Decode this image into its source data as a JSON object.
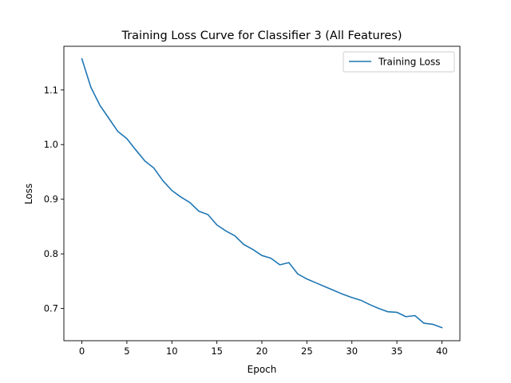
{
  "chart_data": {
    "type": "line",
    "title": "Training Loss Curve for Classifier 3 (All Features)",
    "xlabel": "Epoch",
    "ylabel": "Loss",
    "xlim": [
      -2,
      42
    ],
    "ylim": [
      0.641,
      1.18
    ],
    "xticks": [
      0,
      5,
      10,
      15,
      20,
      25,
      30,
      35,
      40
    ],
    "yticks": [
      0.7,
      0.8,
      0.9,
      1.0,
      1.1
    ],
    "ytick_labels": [
      "0.7",
      "0.8",
      "0.9",
      "1.0",
      "1.1"
    ],
    "grid": false,
    "legend_position": "top-right",
    "series": [
      {
        "name": "Training Loss",
        "color": "#1f77b4",
        "x": [
          0,
          1,
          2,
          3,
          4,
          5,
          6,
          7,
          8,
          9,
          10,
          11,
          12,
          13,
          14,
          15,
          16,
          17,
          18,
          19,
          20,
          21,
          22,
          23,
          24,
          25,
          26,
          27,
          28,
          29,
          30,
          31,
          32,
          33,
          34,
          35,
          36,
          37,
          38,
          39,
          40
        ],
        "values": [
          1.157,
          1.105,
          1.072,
          1.048,
          1.024,
          1.011,
          0.99,
          0.97,
          0.957,
          0.934,
          0.916,
          0.904,
          0.894,
          0.878,
          0.872,
          0.853,
          0.842,
          0.833,
          0.817,
          0.808,
          0.797,
          0.792,
          0.78,
          0.784,
          0.763,
          0.754,
          0.747,
          0.74,
          0.733,
          0.726,
          0.72,
          0.715,
          0.707,
          0.7,
          0.694,
          0.693,
          0.685,
          0.687,
          0.673,
          0.671,
          0.665
        ]
      }
    ]
  }
}
